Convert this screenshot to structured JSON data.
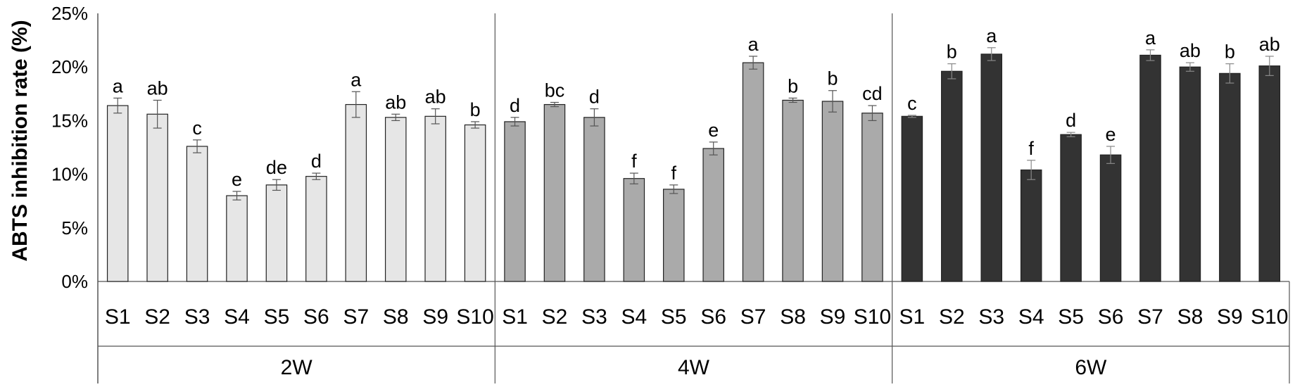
{
  "chart_data": {
    "type": "bar",
    "ylabel": "ABTS inhibition rate (%)",
    "xlabel": "",
    "title": "",
    "ylim": [
      0,
      25
    ],
    "yticks": [
      "0%",
      "5%",
      "10%",
      "15%",
      "20%",
      "25%"
    ],
    "ytick_values": [
      0,
      5,
      10,
      15,
      20,
      25
    ],
    "grid": false,
    "groups": [
      {
        "name": "2W",
        "color": "#e6e6e6",
        "categories": [
          "S1",
          "S2",
          "S3",
          "S4",
          "S5",
          "S6",
          "S7",
          "S8",
          "S9",
          "S10"
        ],
        "values": [
          16.4,
          15.6,
          12.6,
          8.0,
          9.0,
          9.8,
          16.5,
          15.3,
          15.4,
          14.6
        ],
        "errors": [
          0.7,
          1.3,
          0.6,
          0.4,
          0.5,
          0.3,
          1.2,
          0.3,
          0.7,
          0.3
        ],
        "labels": [
          "a",
          "ab",
          "c",
          "e",
          "de",
          "d",
          "a",
          "ab",
          "ab",
          "b"
        ]
      },
      {
        "name": "4W",
        "color": "#aaaaaa",
        "categories": [
          "S1",
          "S2",
          "S3",
          "S4",
          "S5",
          "S6",
          "S7",
          "S8",
          "S9",
          "S10"
        ],
        "values": [
          14.9,
          16.5,
          15.3,
          9.6,
          8.6,
          12.4,
          20.4,
          16.9,
          16.8,
          15.7
        ],
        "errors": [
          0.4,
          0.2,
          0.8,
          0.5,
          0.4,
          0.6,
          0.6,
          0.2,
          1.0,
          0.7
        ],
        "labels": [
          "d",
          "bc",
          "d",
          "f",
          "f",
          "e",
          "a",
          "b",
          "b",
          "cd"
        ]
      },
      {
        "name": "6W",
        "color": "#333333",
        "categories": [
          "S1",
          "S2",
          "S3",
          "S4",
          "S5",
          "S6",
          "S7",
          "S8",
          "S9",
          "S10"
        ],
        "values": [
          15.4,
          19.6,
          21.2,
          10.4,
          13.7,
          11.8,
          21.1,
          20.0,
          19.4,
          20.1
        ],
        "errors": [
          0.1,
          0.7,
          0.6,
          0.9,
          0.2,
          0.8,
          0.5,
          0.4,
          0.9,
          0.9
        ],
        "labels": [
          "c",
          "b",
          "a",
          "f",
          "d",
          "e",
          "a",
          "ab",
          "b",
          "ab"
        ]
      }
    ]
  }
}
